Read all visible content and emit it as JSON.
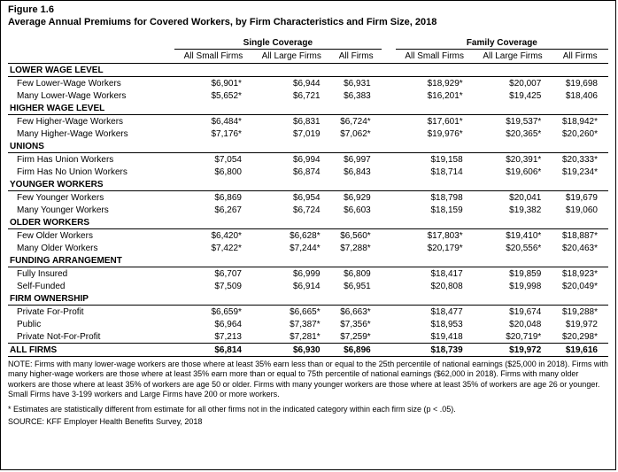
{
  "figure_number": "Figure 1.6",
  "figure_title": "Average Annual Premiums for Covered Workers, by Firm Characteristics and Firm Size, 2018",
  "column_groups": {
    "single": "Single Coverage",
    "family": "Family Coverage"
  },
  "columns": {
    "c1": "All Small Firms",
    "c2": "All Large Firms",
    "c3": "All Firms",
    "c4": "All Small Firms",
    "c5": "All Large Firms",
    "c6": "All Firms"
  },
  "sections": [
    {
      "header": "LOWER WAGE LEVEL",
      "rows": [
        {
          "label": "Few Lower-Wage Workers",
          "v": [
            "$6,901*",
            "$6,944",
            "$6,931",
            "$18,929*",
            "$20,007",
            "$19,698"
          ]
        },
        {
          "label": "Many Lower-Wage Workers",
          "v": [
            "$5,652*",
            "$6,721",
            "$6,383",
            "$16,201*",
            "$19,425",
            "$18,406"
          ]
        }
      ]
    },
    {
      "header": "HIGHER WAGE LEVEL",
      "rows": [
        {
          "label": "Few Higher-Wage Workers",
          "v": [
            "$6,484*",
            "$6,831",
            "$6,724*",
            "$17,601*",
            "$19,537*",
            "$18,942*"
          ]
        },
        {
          "label": "Many Higher-Wage Workers",
          "v": [
            "$7,176*",
            "$7,019",
            "$7,062*",
            "$19,976*",
            "$20,365*",
            "$20,260*"
          ]
        }
      ]
    },
    {
      "header": "UNIONS",
      "rows": [
        {
          "label": "Firm Has Union Workers",
          "v": [
            "$7,054",
            "$6,994",
            "$6,997",
            "$19,158",
            "$20,391*",
            "$20,333*"
          ]
        },
        {
          "label": "Firm Has No Union Workers",
          "v": [
            "$6,800",
            "$6,874",
            "$6,843",
            "$18,714",
            "$19,606*",
            "$19,234*"
          ]
        }
      ]
    },
    {
      "header": "YOUNGER WORKERS",
      "rows": [
        {
          "label": "Few Younger Workers",
          "v": [
            "$6,869",
            "$6,954",
            "$6,929",
            "$18,798",
            "$20,041",
            "$19,679"
          ]
        },
        {
          "label": "Many Younger Workers",
          "v": [
            "$6,267",
            "$6,724",
            "$6,603",
            "$18,159",
            "$19,382",
            "$19,060"
          ]
        }
      ]
    },
    {
      "header": "OLDER WORKERS",
      "rows": [
        {
          "label": "Few Older Workers",
          "v": [
            "$6,420*",
            "$6,628*",
            "$6,560*",
            "$17,803*",
            "$19,410*",
            "$18,887*"
          ]
        },
        {
          "label": "Many Older Workers",
          "v": [
            "$7,422*",
            "$7,244*",
            "$7,288*",
            "$20,179*",
            "$20,556*",
            "$20,463*"
          ]
        }
      ]
    },
    {
      "header": "FUNDING ARRANGEMENT",
      "rows": [
        {
          "label": "Fully Insured",
          "v": [
            "$6,707",
            "$6,999",
            "$6,809",
            "$18,417",
            "$19,859",
            "$18,923*"
          ]
        },
        {
          "label": "Self-Funded",
          "v": [
            "$7,509",
            "$6,914",
            "$6,951",
            "$20,808",
            "$19,998",
            "$20,049*"
          ]
        }
      ]
    },
    {
      "header": "FIRM OWNERSHIP",
      "rows": [
        {
          "label": "Private For-Profit",
          "v": [
            "$6,659*",
            "$6,665*",
            "$6,663*",
            "$18,477",
            "$19,674",
            "$19,288*"
          ]
        },
        {
          "label": "Public",
          "v": [
            "$6,964",
            "$7,387*",
            "$7,356*",
            "$18,953",
            "$20,048",
            "$19,972"
          ]
        },
        {
          "label": "Private Not-For-Profit",
          "v": [
            "$7,213",
            "$7,281*",
            "$7,259*",
            "$19,418",
            "$20,719*",
            "$20,298*"
          ]
        }
      ]
    }
  ],
  "all_firms": {
    "label": "ALL FIRMS",
    "v": [
      "$6,814",
      "$6,930",
      "$6,896",
      "$18,739",
      "$19,972",
      "$19,616"
    ]
  },
  "note": "NOTE: Firms with many lower-wage workers are those where at least 35% earn less than or equal to the 25th percentile of national earnings ($25,000 in 2018). Firms with many higher-wage workers are those where at least 35% earn more than or equal to 75th percentile of national earnings ($62,000 in 2018). Firms with many older workers are those where at least 35% of workers are age 50 or older. Firms with many younger workers are those where at least 35% of workers are age 26 or younger. Small Firms have 3-199 workers and Large Firms have 200 or more workers.",
  "footnote": "* Estimates are statistically different from estimate for all other firms not in the indicated category within each firm size (p < .05).",
  "source": "SOURCE: KFF Employer Health Benefits Survey, 2018"
}
